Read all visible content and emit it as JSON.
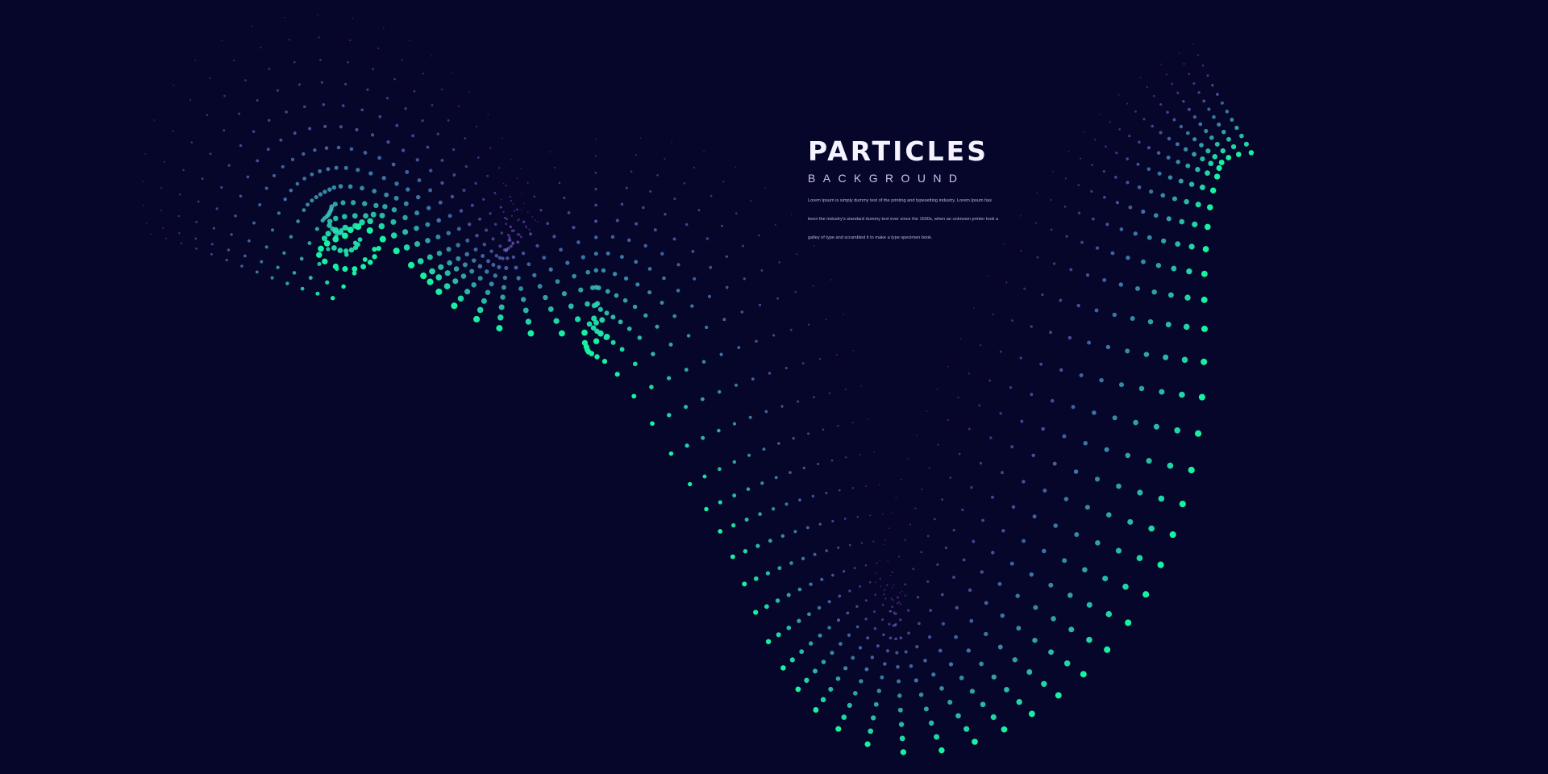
{
  "title": "PARTICLES",
  "subtitle": "BACKGROUND",
  "body_lines": [
    "Lorem Ipsum is simply dummy text of the printing and typesetting industry. Lorem Ipsum has",
    "been the industry's standard dummy text ever since the 1500s, when an unknown printer took a",
    "galley of type and scrambled it to make a type specimen book."
  ],
  "colors": {
    "background": "#06052a",
    "particle_green": "#16f2a2",
    "particle_blue": "#5b8fd6",
    "particle_purple": "#b13ee8"
  }
}
